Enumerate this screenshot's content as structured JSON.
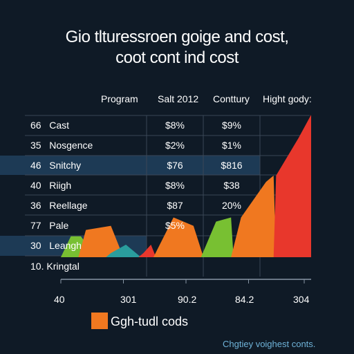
{
  "title_line1": "Gio tlturessroen goige and cost,",
  "title_line2": "coot cont ind cost",
  "columns": [
    "Program",
    "Salt 2012",
    "Conttury",
    "Hight gody:"
  ],
  "rows": [
    {
      "num": "66",
      "label": "Cast",
      "c1": "$8%",
      "c2": "$9%"
    },
    {
      "num": "35",
      "label": "Nosgence",
      "c1": "$2%",
      "c2": "$1%"
    },
    {
      "num": "46",
      "label": "Snitchy",
      "c1": "$76",
      "c2": "$816"
    },
    {
      "num": "40",
      "label": "Riigh",
      "c1": "$8%",
      "c2": "$38"
    },
    {
      "num": "36",
      "label": "Reellage",
      "c1": "$87",
      "c2": "20%"
    },
    {
      "num": "77",
      "label": "Pale",
      "c1": "$5%",
      "c2": ""
    },
    {
      "num": "30",
      "label": "Leangh",
      "c1": "",
      "c2": ""
    },
    {
      "num": "10.",
      "label": "Kringtal",
      "c1": "",
      "c2": ""
    }
  ],
  "x_ticks": [
    "40",
    "301",
    "90.2",
    "84.2",
    "304"
  ],
  "legend": {
    "label": "Ggh-tudl cods",
    "color": "#f07820"
  },
  "footnote": "Chgtiey voighest conts.",
  "colors": {
    "background": "#0f1a26",
    "highlight_row": "#1d3a55",
    "orange": "#f07820",
    "green": "#78c032",
    "teal": "#2a9d9d",
    "red": "#e8372c",
    "grid": "#3a4756"
  },
  "chart_data": {
    "type": "area",
    "title": "Gio tlturessroen goige and cost, coot cont ind cost",
    "x_tick_labels": [
      "40",
      "301",
      "90.2",
      "84.2",
      "304"
    ],
    "series": [
      {
        "color": "#78c032",
        "points": [
          [
            0.0,
            0
          ],
          [
            0.04,
            1.0
          ],
          [
            0.08,
            1.0
          ],
          [
            0.14,
            0
          ]
        ]
      },
      {
        "color": "#f07820",
        "points": [
          [
            0.07,
            0
          ],
          [
            0.1,
            1.3
          ],
          [
            0.2,
            1.5
          ],
          [
            0.25,
            0
          ]
        ]
      },
      {
        "color": "#2a9d9d",
        "points": [
          [
            0.18,
            0
          ],
          [
            0.2,
            0.2
          ],
          [
            0.26,
            0.6
          ],
          [
            0.32,
            0
          ]
        ]
      },
      {
        "color": "#e8372c",
        "points": [
          [
            0.31,
            0
          ],
          [
            0.33,
            0.2
          ],
          [
            0.36,
            0.6
          ],
          [
            0.38,
            0
          ]
        ]
      },
      {
        "color": "#f07820",
        "points": [
          [
            0.37,
            0
          ],
          [
            0.45,
            1.9
          ],
          [
            0.53,
            1.5
          ],
          [
            0.57,
            0
          ]
        ]
      },
      {
        "color": "#78c032",
        "points": [
          [
            0.56,
            0
          ],
          [
            0.62,
            1.7
          ],
          [
            0.68,
            1.9
          ],
          [
            0.69,
            0
          ]
        ]
      },
      {
        "color": "#f07820",
        "points": [
          [
            0.68,
            0
          ],
          [
            0.72,
            1.9
          ],
          [
            0.82,
            3.6
          ],
          [
            0.85,
            3.9
          ],
          [
            0.86,
            0
          ]
        ]
      },
      {
        "color": "#e8372c",
        "points": [
          [
            0.85,
            0
          ],
          [
            0.86,
            3.9
          ],
          [
            0.95,
            5.7
          ],
          [
            1.0,
            6.8
          ],
          [
            1.0,
            0
          ]
        ]
      }
    ],
    "ylim": [
      0,
      7
    ]
  }
}
